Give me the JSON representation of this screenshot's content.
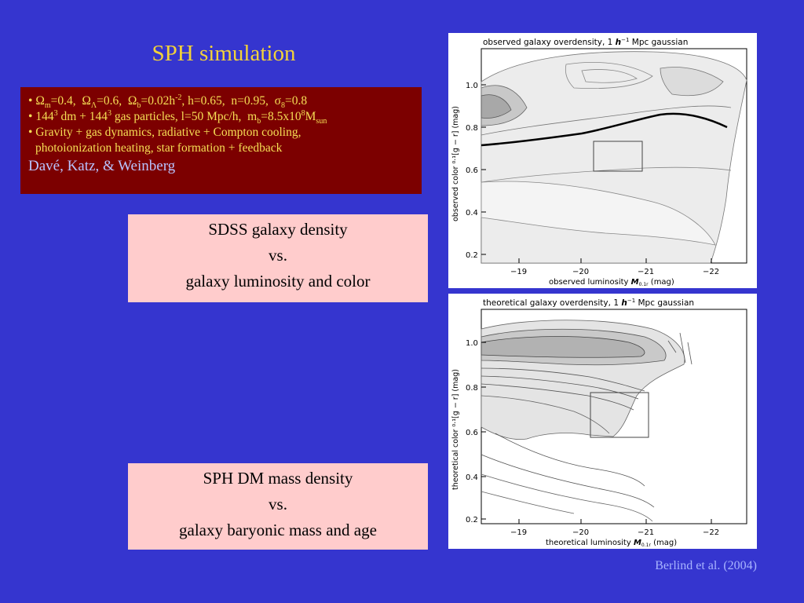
{
  "slide": {
    "title": "SPH simulation",
    "background_color": "#3535cf",
    "accent_color": "#f2d23a"
  },
  "parameters": {
    "line1": {
      "bullet": "•",
      "omega_sym": "Ω",
      "m_sub": "m",
      "m_val": "=0.4,",
      "lambda_sub": "Λ",
      "lambda_val": "=0.6,",
      "b_sub": "b",
      "b_val": "=0.02h",
      "b_exp": "-2",
      "rest": ", h=0.65,  n=0.95,  ",
      "sigma_sym": "σ",
      "sigma_sub": "8",
      "sigma_val": "=0.8"
    },
    "line2": {
      "bullet": "•",
      "dm_num": "144",
      "dm_exp": "3",
      "dm_text": " dm + ",
      "gas_num": "144",
      "gas_exp": "3",
      "gas_text": " gas particles, l=50 Mpc/h,  m",
      "mb_sub": "b",
      "mb_val": "=8.5x10",
      "mb_exp": "8",
      "msun": "M",
      "msun_sub": "sun"
    },
    "line3": "• Gravity + gas dynamics, radiative + Compton cooling,",
    "line4": "photoionization heating, star formation + feedback",
    "authors": "Davé, Katz, & Weinberg"
  },
  "boxes": {
    "sdss": {
      "line1": "SDSS galaxy density",
      "line2": "vs.",
      "line3": "galaxy luminosity and color"
    },
    "sph": {
      "line1": "SPH DM mass density",
      "line2": "vs.",
      "line3": "galaxy baryonic mass and age"
    }
  },
  "plots": {
    "observed": {
      "title_pre": "observed galaxy overdensity, 1 ",
      "title_h": "h",
      "title_exp": "−1",
      "title_post": " Mpc gaussian",
      "ylabel": "observed color ⁰·¹[g − r] (mag)",
      "xlabel_pre": "observed luminosity ",
      "xlabel_m": "M",
      "xlabel_sub": "0.1r",
      "xlabel_post": " (mag)",
      "yticks": [
        "1.0",
        "0.8",
        "0.6",
        "0.4",
        "0.2"
      ],
      "xticks": [
        "−19",
        "−20",
        "−21",
        "−22"
      ]
    },
    "theoretical": {
      "title_pre": "theoretical galaxy overdensity, 1 ",
      "title_h": "h",
      "title_exp": "−1",
      "title_post": " Mpc gaussian",
      "ylabel": "theoretical color ⁰·¹[g − r] (mag)",
      "xlabel_pre": "theoretical luminosity ",
      "xlabel_m": "M",
      "xlabel_sub": "0.1r",
      "xlabel_post": " (mag)",
      "yticks": [
        "1.0",
        "0.8",
        "0.6",
        "0.4",
        "0.2"
      ],
      "xticks": [
        "−19",
        "−20",
        "−21",
        "−22"
      ]
    }
  },
  "credit": "Berlind et al. (2004)"
}
